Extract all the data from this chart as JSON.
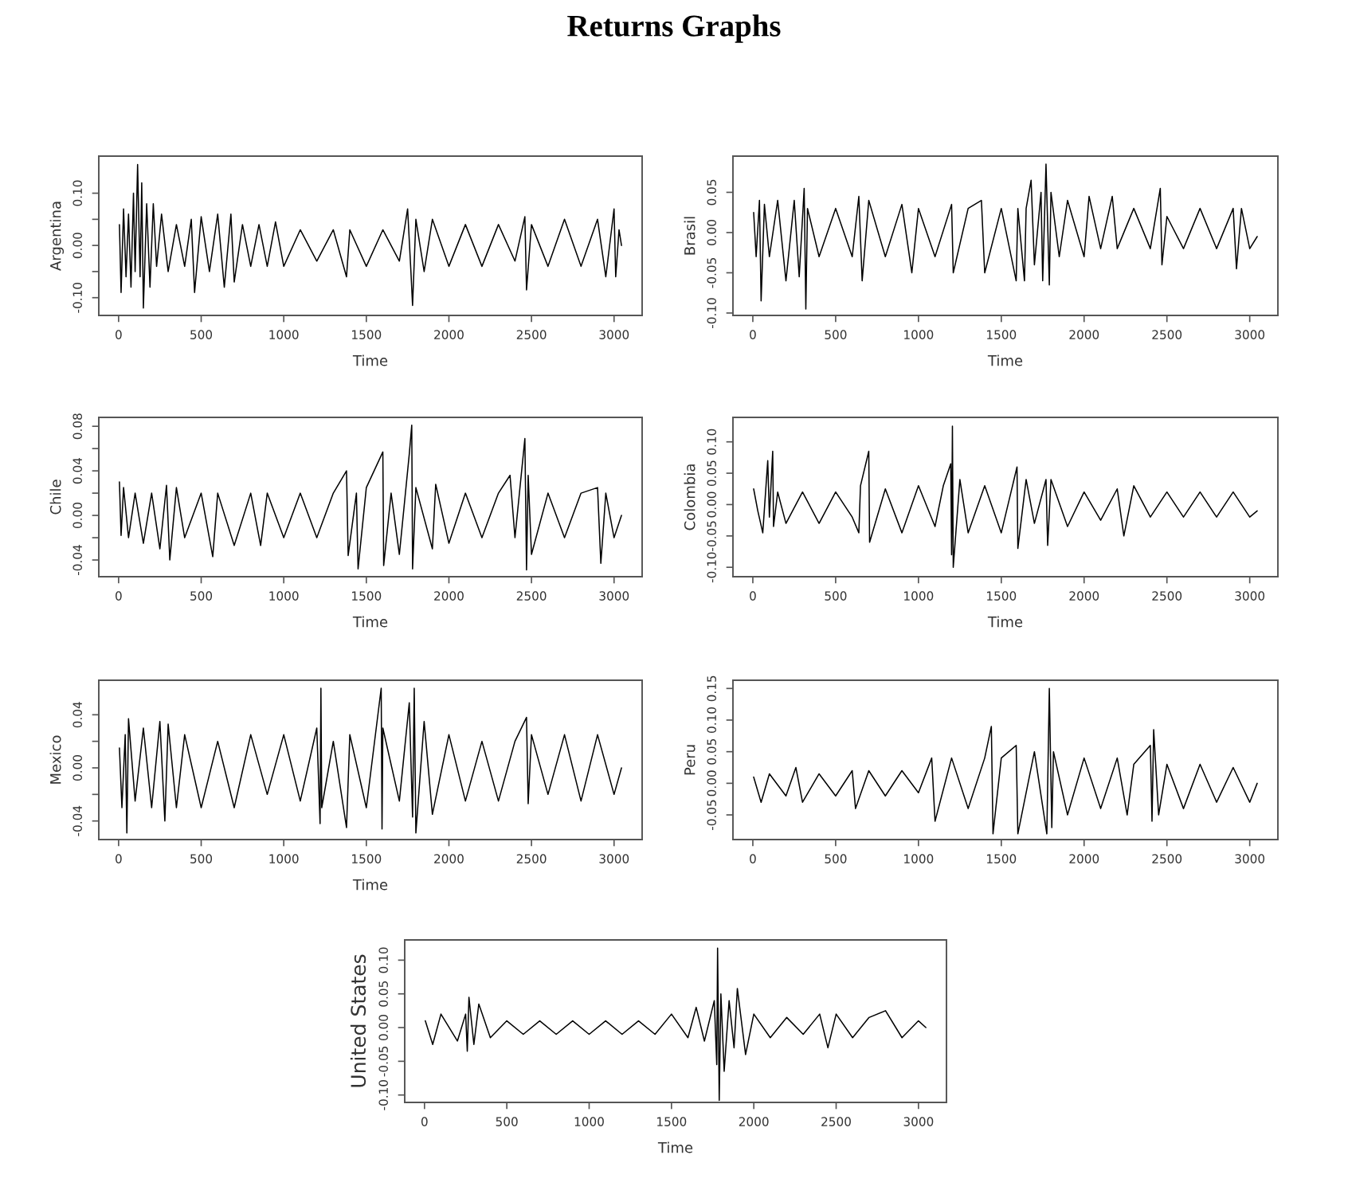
{
  "chart_data": [
    {
      "type": "line",
      "title": "Returns Graphs",
      "xlabel": "Time",
      "ylabel": "Argentina",
      "color": "#000000",
      "grid": false,
      "legend": false,
      "x": [
        5,
        15,
        30,
        45,
        60,
        75,
        90,
        100,
        115,
        130,
        140,
        150,
        170,
        190,
        210,
        230,
        260,
        300,
        350,
        400,
        440,
        460,
        500,
        550,
        600,
        640,
        680,
        700,
        750,
        800,
        850,
        900,
        950,
        1000,
        1100,
        1200,
        1300,
        1380,
        1400,
        1500,
        1600,
        1700,
        1750,
        1770,
        1780,
        1800,
        1850,
        1900,
        2000,
        2100,
        2200,
        2300,
        2400,
        2460,
        2470,
        2500,
        2600,
        2700,
        2800,
        2900,
        2950,
        3000,
        3010,
        3030,
        3045
      ],
      "values": [
        0.04,
        -0.09,
        0.07,
        -0.06,
        0.06,
        -0.08,
        0.1,
        -0.05,
        0.155,
        -0.06,
        0.12,
        -0.12,
        0.08,
        -0.08,
        0.08,
        -0.04,
        0.06,
        -0.05,
        0.04,
        -0.04,
        0.05,
        -0.09,
        0.055,
        -0.05,
        0.06,
        -0.08,
        0.06,
        -0.07,
        0.04,
        -0.04,
        0.04,
        -0.04,
        0.045,
        -0.04,
        0.03,
        -0.03,
        0.03,
        -0.06,
        0.03,
        -0.04,
        0.03,
        -0.03,
        0.07,
        -0.05,
        -0.115,
        0.05,
        -0.05,
        0.05,
        -0.04,
        0.04,
        -0.04,
        0.04,
        -0.03,
        0.055,
        -0.085,
        0.04,
        -0.04,
        0.05,
        -0.04,
        0.05,
        -0.06,
        0.07,
        -0.06,
        0.03,
        0.0
      ],
      "xlim": [
        -120,
        3170
      ],
      "xticks": [
        0,
        500,
        1000,
        1500,
        2000,
        2500,
        3000
      ],
      "ylim": [
        -0.134,
        0.171
      ],
      "yticks": [
        {
          "value": -0.1,
          "label": "-0.10"
        },
        {
          "value": -0.05,
          "label": null
        },
        {
          "value": 0,
          "label": "0.00"
        },
        {
          "value": 0.05,
          "label": null
        },
        {
          "value": 0.1,
          "label": "0.10"
        }
      ]
    },
    {
      "type": "line",
      "xlabel": "Time",
      "ylabel": "Brasil",
      "color": "#000000",
      "grid": false,
      "legend": false,
      "x": [
        5,
        20,
        40,
        50,
        70,
        100,
        150,
        200,
        250,
        280,
        310,
        320,
        330,
        400,
        500,
        600,
        640,
        660,
        700,
        800,
        900,
        960,
        1000,
        1100,
        1200,
        1210,
        1300,
        1380,
        1400,
        1500,
        1590,
        1600,
        1640,
        1650,
        1680,
        1700,
        1740,
        1750,
        1770,
        1790,
        1800,
        1850,
        1900,
        2000,
        2030,
        2100,
        2170,
        2200,
        2300,
        2400,
        2460,
        2470,
        2500,
        2600,
        2700,
        2800,
        2900,
        2920,
        2950,
        3000,
        3045
      ],
      "values": [
        0.025,
        -0.03,
        0.04,
        -0.085,
        0.035,
        -0.03,
        0.04,
        -0.06,
        0.04,
        -0.055,
        0.055,
        -0.095,
        0.03,
        -0.03,
        0.03,
        -0.03,
        0.045,
        -0.06,
        0.04,
        -0.03,
        0.035,
        -0.05,
        0.03,
        -0.03,
        0.035,
        -0.05,
        0.03,
        0.04,
        -0.05,
        0.03,
        -0.06,
        0.03,
        -0.06,
        0.03,
        0.065,
        -0.04,
        0.05,
        -0.06,
        0.085,
        -0.065,
        0.05,
        -0.03,
        0.04,
        -0.03,
        0.045,
        -0.02,
        0.045,
        -0.02,
        0.03,
        -0.02,
        0.055,
        -0.04,
        0.02,
        -0.02,
        0.03,
        -0.02,
        0.03,
        -0.045,
        0.03,
        -0.02,
        -0.005
      ],
      "xlim": [
        -120,
        3170
      ],
      "xticks": [
        0,
        500,
        1000,
        1500,
        2000,
        2500,
        3000
      ],
      "ylim": [
        -0.103,
        0.095
      ],
      "yticks": [
        {
          "value": -0.1,
          "label": "-0.10"
        },
        {
          "value": -0.05,
          "label": "-0.05"
        },
        {
          "value": 0,
          "label": "0.00"
        },
        {
          "value": 0.05,
          "label": "0.05"
        }
      ]
    },
    {
      "type": "line",
      "xlabel": "Time",
      "ylabel": "Chile",
      "color": "#000000",
      "grid": false,
      "legend": false,
      "x": [
        5,
        15,
        30,
        60,
        100,
        150,
        200,
        250,
        290,
        310,
        350,
        400,
        500,
        570,
        600,
        700,
        800,
        860,
        900,
        1000,
        1100,
        1200,
        1300,
        1380,
        1390,
        1440,
        1450,
        1500,
        1600,
        1605,
        1650,
        1700,
        1760,
        1775,
        1780,
        1800,
        1900,
        1920,
        2000,
        2100,
        2200,
        2300,
        2370,
        2400,
        2460,
        2470,
        2480,
        2500,
        2600,
        2700,
        2800,
        2900,
        2920,
        2950,
        3000,
        3045
      ],
      "values": [
        0.03,
        -0.018,
        0.025,
        -0.02,
        0.02,
        -0.025,
        0.02,
        -0.03,
        0.027,
        -0.04,
        0.025,
        -0.02,
        0.02,
        -0.037,
        0.02,
        -0.027,
        0.02,
        -0.027,
        0.02,
        -0.02,
        0.02,
        -0.02,
        0.02,
        0.04,
        -0.036,
        0.02,
        -0.048,
        0.025,
        0.057,
        -0.045,
        0.02,
        -0.035,
        0.055,
        0.081,
        -0.048,
        0.025,
        -0.03,
        0.028,
        -0.025,
        0.02,
        -0.02,
        0.02,
        0.036,
        -0.02,
        0.069,
        -0.049,
        0.036,
        -0.035,
        0.02,
        -0.02,
        0.02,
        0.025,
        -0.043,
        0.02,
        -0.02,
        0.0
      ],
      "xlim": [
        -120,
        3170
      ],
      "xticks": [
        0,
        500,
        1000,
        1500,
        2000,
        2500,
        3000
      ],
      "ylim": [
        -0.055,
        0.088
      ],
      "yticks": [
        {
          "value": -0.04,
          "label": "-0.04"
        },
        {
          "value": -0.02,
          "label": null
        },
        {
          "value": 0,
          "label": "0.00"
        },
        {
          "value": 0.02,
          "label": null
        },
        {
          "value": 0.04,
          "label": "0.04"
        },
        {
          "value": 0.06,
          "label": null
        },
        {
          "value": 0.08,
          "label": "0.08"
        }
      ]
    },
    {
      "type": "line",
      "xlabel": "Time",
      "ylabel": "Colombia",
      "color": "#000000",
      "grid": false,
      "legend": false,
      "x": [
        5,
        30,
        60,
        90,
        100,
        120,
        125,
        150,
        200,
        300,
        400,
        500,
        600,
        640,
        650,
        700,
        705,
        800,
        900,
        1000,
        1100,
        1150,
        1195,
        1200,
        1205,
        1210,
        1250,
        1300,
        1400,
        1500,
        1595,
        1600,
        1650,
        1700,
        1770,
        1780,
        1800,
        1900,
        2000,
        2100,
        2200,
        2240,
        2300,
        2400,
        2500,
        2600,
        2700,
        2800,
        2900,
        3000,
        3045
      ],
      "values": [
        0.025,
        -0.01,
        -0.045,
        0.07,
        -0.02,
        0.085,
        -0.035,
        0.02,
        -0.03,
        0.02,
        -0.03,
        0.02,
        -0.02,
        -0.045,
        0.03,
        0.085,
        -0.06,
        0.025,
        -0.045,
        0.03,
        -0.035,
        0.03,
        0.065,
        -0.08,
        0.125,
        -0.1,
        0.04,
        -0.045,
        0.03,
        -0.045,
        0.06,
        -0.07,
        0.04,
        -0.03,
        0.04,
        -0.065,
        0.04,
        -0.035,
        0.02,
        -0.025,
        0.025,
        -0.05,
        0.03,
        -0.02,
        0.02,
        -0.02,
        0.02,
        -0.02,
        0.02,
        -0.02,
        -0.01
      ],
      "xlim": [
        -120,
        3170
      ],
      "xticks": [
        0,
        500,
        1000,
        1500,
        2000,
        2500,
        3000
      ],
      "ylim": [
        -0.115,
        0.139
      ],
      "yticks": [
        {
          "value": -0.1,
          "label": "-0.10"
        },
        {
          "value": -0.05,
          "label": "-0.05"
        },
        {
          "value": 0,
          "label": "0.00"
        },
        {
          "value": 0.05,
          "label": "0.05"
        },
        {
          "value": 0.1,
          "label": "0.10"
        }
      ]
    },
    {
      "type": "line",
      "xlabel": "Time",
      "ylabel": "Mexico",
      "color": "#000000",
      "grid": false,
      "legend": false,
      "x": [
        5,
        20,
        40,
        50,
        60,
        100,
        150,
        200,
        250,
        280,
        300,
        350,
        400,
        500,
        600,
        700,
        800,
        900,
        1000,
        1100,
        1200,
        1220,
        1225,
        1230,
        1300,
        1380,
        1400,
        1500,
        1590,
        1595,
        1600,
        1700,
        1760,
        1780,
        1790,
        1800,
        1850,
        1900,
        2000,
        2100,
        2200,
        2300,
        2400,
        2470,
        2480,
        2500,
        2600,
        2700,
        2800,
        2900,
        3000,
        3045
      ],
      "values": [
        0.015,
        -0.03,
        0.025,
        -0.049,
        0.037,
        -0.025,
        0.03,
        -0.03,
        0.035,
        -0.04,
        0.033,
        -0.03,
        0.025,
        -0.03,
        0.02,
        -0.03,
        0.025,
        -0.02,
        0.025,
        -0.025,
        0.03,
        -0.042,
        0.06,
        -0.03,
        0.02,
        -0.045,
        0.025,
        -0.03,
        0.06,
        -0.046,
        0.03,
        -0.025,
        0.049,
        -0.037,
        0.06,
        -0.049,
        0.035,
        -0.035,
        0.025,
        -0.025,
        0.02,
        -0.025,
        0.02,
        0.038,
        -0.027,
        0.025,
        -0.02,
        0.025,
        -0.025,
        0.025,
        -0.02,
        0.0
      ],
      "xlim": [
        -120,
        3170
      ],
      "xticks": [
        0,
        500,
        1000,
        1500,
        2000,
        2500,
        3000
      ],
      "ylim": [
        -0.054,
        0.066
      ],
      "yticks": [
        {
          "value": -0.04,
          "label": "-0.04"
        },
        {
          "value": -0.02,
          "label": null
        },
        {
          "value": 0,
          "label": "0.00"
        },
        {
          "value": 0.02,
          "label": null
        },
        {
          "value": 0.04,
          "label": "0.04"
        }
      ]
    },
    {
      "type": "line",
      "ylabel": "Peru",
      "color": "#000000",
      "grid": false,
      "legend": false,
      "x": [
        5,
        50,
        100,
        200,
        260,
        300,
        400,
        500,
        600,
        620,
        700,
        800,
        900,
        1000,
        1080,
        1100,
        1200,
        1300,
        1400,
        1440,
        1450,
        1500,
        1590,
        1600,
        1700,
        1775,
        1790,
        1805,
        1815,
        1900,
        2000,
        2100,
        2200,
        2260,
        2300,
        2400,
        2410,
        2420,
        2450,
        2500,
        2600,
        2700,
        2800,
        2900,
        3000,
        3045
      ],
      "values": [
        0.01,
        -0.03,
        0.015,
        -0.02,
        0.025,
        -0.03,
        0.015,
        -0.02,
        0.02,
        -0.04,
        0.02,
        -0.02,
        0.02,
        -0.015,
        0.04,
        -0.06,
        0.04,
        -0.04,
        0.04,
        0.09,
        -0.08,
        0.04,
        0.06,
        -0.08,
        0.05,
        -0.08,
        0.15,
        -0.07,
        0.05,
        -0.05,
        0.04,
        -0.04,
        0.04,
        -0.05,
        0.03,
        0.06,
        -0.06,
        0.085,
        -0.05,
        0.03,
        -0.04,
        0.03,
        -0.03,
        0.025,
        -0.03,
        0.0
      ],
      "xlim": [
        -120,
        3170
      ],
      "xticks": [
        0,
        500,
        1000,
        1500,
        2000,
        2500,
        3000
      ],
      "ylim": [
        -0.089,
        0.163
      ],
      "yticks": [
        {
          "value": -0.05,
          "label": "-0.05"
        },
        {
          "value": 0,
          "label": "0.00"
        },
        {
          "value": 0.05,
          "label": "0.05"
        },
        {
          "value": 0.1,
          "label": "0.10"
        },
        {
          "value": 0.15,
          "label": "0.15"
        }
      ]
    },
    {
      "type": "line",
      "xlabel": "Time",
      "ylabel": "United States",
      "color": "#000000",
      "grid": false,
      "legend": false,
      "x": [
        5,
        50,
        100,
        200,
        250,
        260,
        270,
        300,
        330,
        400,
        500,
        600,
        700,
        800,
        900,
        1000,
        1100,
        1200,
        1300,
        1400,
        1500,
        1600,
        1650,
        1700,
        1760,
        1775,
        1780,
        1790,
        1800,
        1820,
        1850,
        1880,
        1900,
        1950,
        2000,
        2100,
        2200,
        2300,
        2400,
        2450,
        2500,
        2600,
        2700,
        2800,
        2900,
        3000,
        3045
      ],
      "values": [
        0.01,
        -0.025,
        0.02,
        -0.02,
        0.02,
        -0.035,
        0.045,
        -0.025,
        0.035,
        -0.015,
        0.01,
        -0.01,
        0.01,
        -0.01,
        0.01,
        -0.01,
        0.01,
        -0.01,
        0.01,
        -0.01,
        0.02,
        -0.015,
        0.03,
        -0.02,
        0.04,
        -0.055,
        0.118,
        -0.108,
        0.05,
        -0.065,
        0.04,
        -0.03,
        0.058,
        -0.04,
        0.02,
        -0.015,
        0.015,
        -0.01,
        0.02,
        -0.03,
        0.02,
        -0.015,
        0.015,
        0.025,
        -0.015,
        0.01,
        0.0
      ],
      "xlim": [
        -120,
        3170
      ],
      "xticks": [
        0,
        500,
        1000,
        1500,
        2000,
        2500,
        3000
      ],
      "ylim": [
        -0.111,
        0.13
      ],
      "yticks": [
        {
          "value": -0.1,
          "label": "-0.10"
        },
        {
          "value": -0.05,
          "label": "-0.05"
        },
        {
          "value": 0,
          "label": "0.00"
        },
        {
          "value": 0.05,
          "label": "0.05"
        },
        {
          "value": 0.1,
          "label": "0.10"
        }
      ]
    }
  ]
}
